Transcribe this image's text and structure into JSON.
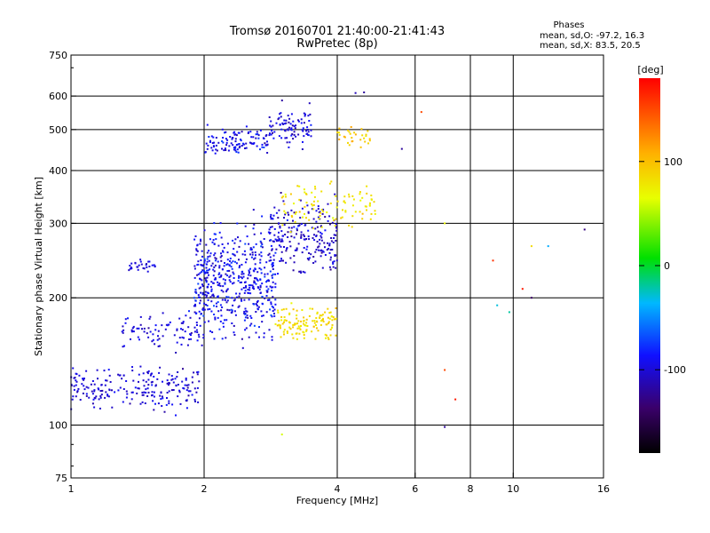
{
  "chart_data": {
    "type": "scatter",
    "title": "Tromsø 20160701 21:40:00-21:41:43",
    "subtitle": "RwPretec (8p)",
    "xlabel": "Frequency [MHz]",
    "ylabel": "Stationary phase Virtual Height [km]",
    "x_scale": "log",
    "y_scale": "log",
    "xlim": [
      1,
      16
    ],
    "ylim": [
      75,
      750
    ],
    "x_ticks": [
      1,
      2,
      4,
      6,
      8,
      10,
      16
    ],
    "x_tick_labels": [
      "1",
      "2",
      "4",
      "6",
      "8",
      "10",
      "16"
    ],
    "y_ticks": [
      75,
      100,
      200,
      300,
      400,
      500,
      600,
      750
    ],
    "y_tick_labels": [
      "75",
      "100",
      "200",
      "300",
      "400",
      "500",
      "600",
      "750"
    ],
    "grid": true,
    "phases_panel": {
      "heading": "Phases",
      "line_o": "mean, sd,O: -97.2, 16.3",
      "line_x": "mean, sd,X:  83.5, 20.5"
    },
    "colorbar": {
      "label": "[deg]",
      "range": [
        -180,
        180
      ],
      "ticks": [
        100,
        0,
        -100
      ],
      "tick_labels": [
        "100",
        "0",
        "-100"
      ],
      "colormap": "rainbow"
    },
    "point_groups": [
      {
        "x_range": [
          1.0,
          1.95
        ],
        "y_center": 122,
        "y_spread": 0.16,
        "phase": -100,
        "phase_sd": 14,
        "count": 220
      },
      {
        "x_range": [
          1.3,
          2.0
        ],
        "y_center": 165,
        "y_spread": 0.14,
        "phase": -98,
        "phase_sd": 14,
        "count": 90
      },
      {
        "x_range": [
          1.35,
          1.6
        ],
        "y_center": 238,
        "y_spread": 0.04,
        "phase": -100,
        "phase_sd": 12,
        "count": 30
      },
      {
        "x_range": [
          1.9,
          2.9
        ],
        "y_center": 220,
        "y_spread": 0.42,
        "phase": -92,
        "phase_sd": 20,
        "count": 520
      },
      {
        "x_range": [
          2.0,
          2.8
        ],
        "y_center": 470,
        "y_spread": 0.1,
        "phase": -92,
        "phase_sd": 18,
        "count": 110
      },
      {
        "x_range": [
          2.8,
          4.0
        ],
        "y_center": 280,
        "y_spread": 0.28,
        "phase": -105,
        "phase_sd": 18,
        "count": 220
      },
      {
        "x_range": [
          2.8,
          3.5
        ],
        "y_center": 510,
        "y_spread": 0.15,
        "phase": -100,
        "phase_sd": 18,
        "count": 90
      },
      {
        "x_range": [
          2.9,
          4.0
        ],
        "y_center": 175,
        "y_spread": 0.13,
        "phase": 85,
        "phase_sd": 15,
        "count": 130
      },
      {
        "x_range": [
          3.0,
          4.9
        ],
        "y_center": 330,
        "y_spread": 0.18,
        "phase": 80,
        "phase_sd": 15,
        "count": 100
      },
      {
        "x_range": [
          4.0,
          4.8
        ],
        "y_center": 480,
        "y_spread": 0.1,
        "phase": 95,
        "phase_sd": 15,
        "count": 30
      }
    ],
    "isolated_points": [
      {
        "x": 6.2,
        "y": 550,
        "phase": 150
      },
      {
        "x": 5.6,
        "y": 450,
        "phase": -120
      },
      {
        "x": 7.0,
        "y": 300,
        "phase": 70
      },
      {
        "x": 9.0,
        "y": 245,
        "phase": 160
      },
      {
        "x": 11.0,
        "y": 265,
        "phase": 85
      },
      {
        "x": 12.0,
        "y": 265,
        "phase": -40
      },
      {
        "x": 14.5,
        "y": 290,
        "phase": -130
      },
      {
        "x": 10.5,
        "y": 210,
        "phase": 170
      },
      {
        "x": 11.0,
        "y": 200,
        "phase": -140
      },
      {
        "x": 9.2,
        "y": 192,
        "phase": -30
      },
      {
        "x": 9.8,
        "y": 185,
        "phase": -20
      },
      {
        "x": 7.0,
        "y": 135,
        "phase": 150
      },
      {
        "x": 7.4,
        "y": 115,
        "phase": 170
      },
      {
        "x": 7.0,
        "y": 99,
        "phase": -120
      },
      {
        "x": 3.0,
        "y": 95,
        "phase": 60
      },
      {
        "x": 4.6,
        "y": 612,
        "phase": -120
      },
      {
        "x": 4.4,
        "y": 610,
        "phase": -110
      }
    ]
  }
}
